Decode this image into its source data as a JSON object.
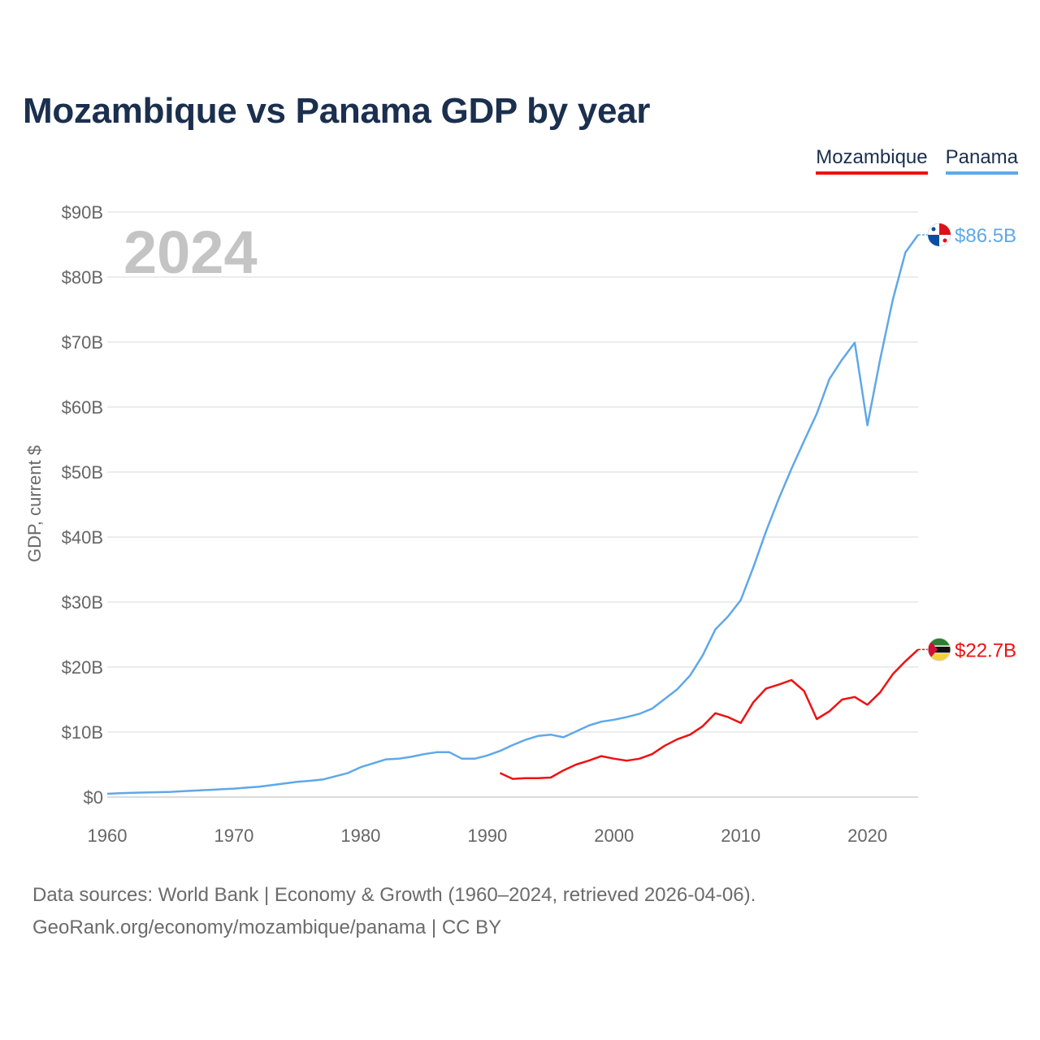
{
  "title": "Mozambique vs Panama GDP by year",
  "legend": {
    "mozambique": "Mozambique",
    "panama": "Panama"
  },
  "year_display": "2024",
  "sources": {
    "line1": "Data sources: World Bank | Economy & Growth (1960–2024, retrieved 2026-04-06).",
    "line2": "GeoRank.org/economy/mozambique/panama | CC BY"
  },
  "colors": {
    "mozambique": "#ee1111",
    "panama": "#5fa8e8",
    "title": "#1b2f4e"
  },
  "chart_data": {
    "type": "line",
    "title": "Mozambique vs Panama GDP by year",
    "xlabel": "",
    "ylabel": "GDP, current $",
    "xlim": [
      1960,
      2024
    ],
    "ylim": [
      0,
      90
    ],
    "unit": "billion USD",
    "x_ticks": [
      1960,
      1970,
      1980,
      1990,
      2000,
      2010,
      2020
    ],
    "y_ticks": [
      {
        "value": 0,
        "label": "$0"
      },
      {
        "value": 10,
        "label": "$10B"
      },
      {
        "value": 20,
        "label": "$20B"
      },
      {
        "value": 30,
        "label": "$30B"
      },
      {
        "value": 40,
        "label": "$40B"
      },
      {
        "value": 50,
        "label": "$50B"
      },
      {
        "value": 60,
        "label": "$60B"
      },
      {
        "value": 70,
        "label": "$70B"
      },
      {
        "value": 80,
        "label": "$80B"
      },
      {
        "value": 90,
        "label": "$90B"
      }
    ],
    "series": [
      {
        "name": "Panama",
        "color": "#5fa8e8",
        "end_label": "$86.5B",
        "x": [
          1960,
          1961,
          1962,
          1963,
          1964,
          1965,
          1966,
          1967,
          1968,
          1969,
          1970,
          1971,
          1972,
          1973,
          1974,
          1975,
          1976,
          1977,
          1978,
          1979,
          1980,
          1981,
          1982,
          1983,
          1984,
          1985,
          1986,
          1987,
          1988,
          1989,
          1990,
          1991,
          1992,
          1993,
          1994,
          1995,
          1996,
          1997,
          1998,
          1999,
          2000,
          2001,
          2002,
          2003,
          2004,
          2005,
          2006,
          2007,
          2008,
          2009,
          2010,
          2011,
          2012,
          2013,
          2014,
          2015,
          2016,
          2017,
          2018,
          2019,
          2020,
          2021,
          2022,
          2023,
          2024
        ],
        "values": [
          0.5,
          0.6,
          0.65,
          0.7,
          0.75,
          0.8,
          0.9,
          1.0,
          1.1,
          1.2,
          1.3,
          1.45,
          1.6,
          1.85,
          2.1,
          2.35,
          2.5,
          2.7,
          3.2,
          3.7,
          4.6,
          5.2,
          5.8,
          5.9,
          6.2,
          6.6,
          6.9,
          6.9,
          5.9,
          5.9,
          6.4,
          7.1,
          8.0,
          8.8,
          9.4,
          9.6,
          9.2,
          10.1,
          11.0,
          11.6,
          11.9,
          12.3,
          12.8,
          13.6,
          15.1,
          16.6,
          18.7,
          21.8,
          25.8,
          27.8,
          30.3,
          35.4,
          40.9,
          45.9,
          50.5,
          54.8,
          59.0,
          64.3,
          67.3,
          69.9,
          57.2,
          67.3,
          76.5,
          83.8,
          86.5
        ]
      },
      {
        "name": "Mozambique",
        "color": "#ee1111",
        "end_label": "$22.7B",
        "x": [
          1991,
          1992,
          1993,
          1994,
          1995,
          1996,
          1997,
          1998,
          1999,
          2000,
          2001,
          2002,
          2003,
          2004,
          2005,
          2006,
          2007,
          2008,
          2009,
          2010,
          2011,
          2012,
          2013,
          2014,
          2015,
          2016,
          2017,
          2018,
          2019,
          2020,
          2021,
          2022,
          2023,
          2024
        ],
        "values": [
          3.7,
          2.8,
          2.9,
          2.9,
          3.0,
          4.1,
          5.0,
          5.6,
          6.3,
          5.9,
          5.6,
          5.9,
          6.6,
          7.9,
          8.9,
          9.6,
          10.9,
          12.9,
          12.3,
          11.4,
          14.6,
          16.7,
          17.3,
          18.0,
          16.3,
          12.0,
          13.2,
          15.0,
          15.4,
          14.2,
          16.1,
          18.9,
          20.9,
          22.7
        ]
      }
    ]
  }
}
